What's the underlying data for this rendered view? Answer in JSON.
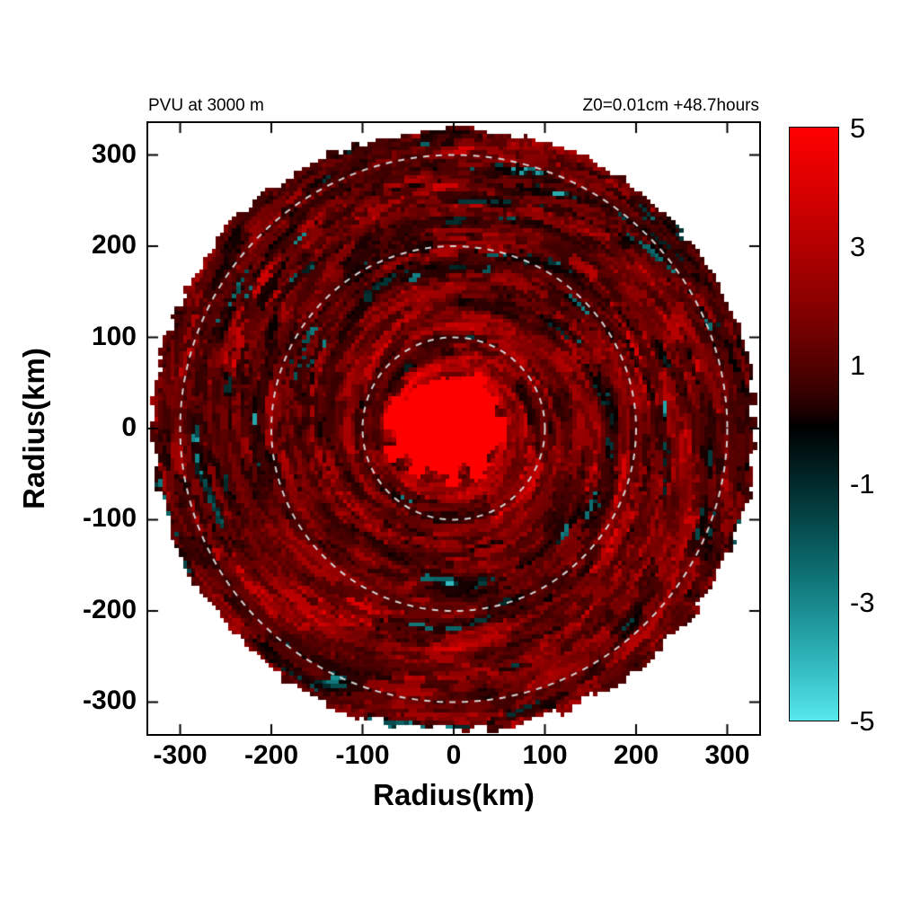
{
  "page": {
    "background": "#ffffff"
  },
  "chart_data": {
    "type": "heatmap",
    "title_left": "PVU at  3000 m",
    "title_right": "Z0=0.01cm  +48.7hours",
    "xlabel": "Radius(km)",
    "ylabel": "Radius(km)",
    "x_ticks": [
      -300,
      -200,
      -100,
      0,
      100,
      200,
      300
    ],
    "y_ticks": [
      300,
      200,
      100,
      0,
      -100,
      -200,
      -300
    ],
    "axis_range_km": [
      -335,
      335
    ],
    "data_radius_km": 332,
    "core_radius_km": 60,
    "dashed_circle_radii_km": [
      100,
      200,
      300
    ],
    "dashed_circle_color": "#d4d4d4",
    "colorbar": {
      "ticks": [
        5,
        3,
        1,
        -1,
        -3,
        -5
      ],
      "vmin": -5,
      "vmax": 5,
      "stops": [
        {
          "v": 5,
          "color": "#ff0000"
        },
        {
          "v": 1,
          "color": "#4d0000"
        },
        {
          "v": 0,
          "color": "#000000"
        },
        {
          "v": -1,
          "color": "#0d2b2c"
        },
        {
          "v": -5,
          "color": "#58e8ee"
        }
      ]
    },
    "field_description": "Mottled potential-vorticity field: mostly dark-red and red azimuthal arcs with scattered cyan patches, a solid bright-red core within ~60 km of center, ragged pixelated circular data edge near 332 km, dashed gray range rings at 100, 200 and 300 km"
  }
}
